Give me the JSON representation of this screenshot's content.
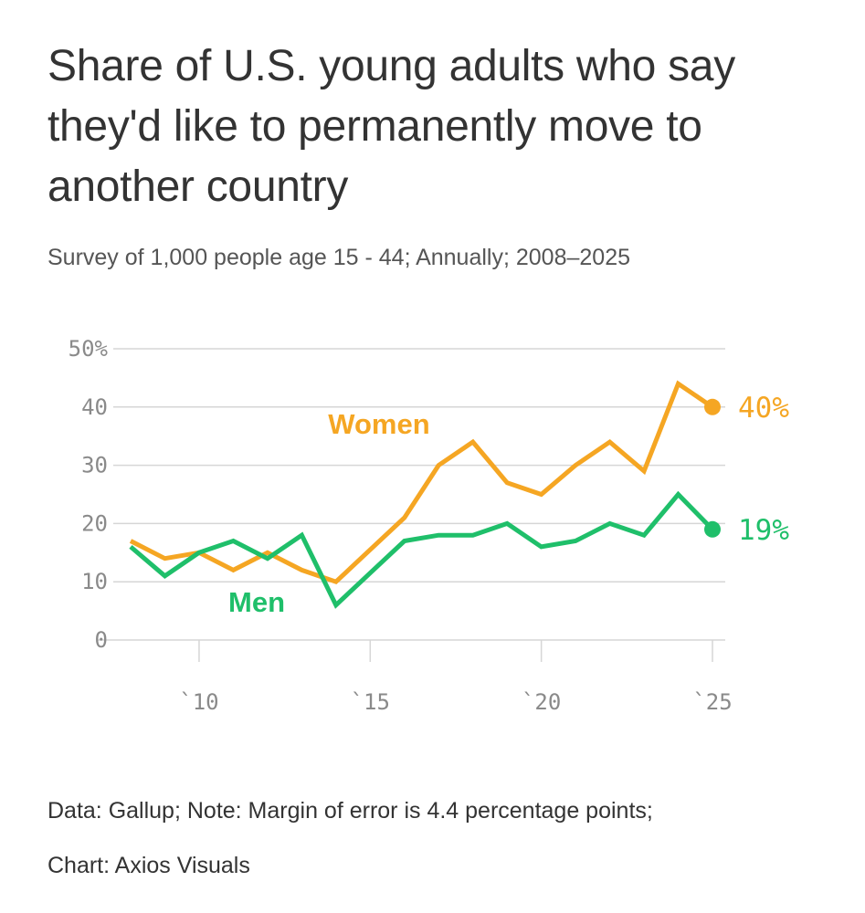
{
  "title": "Share of U.S. young adults who say they'd like to permanently move to another country",
  "subtitle": "Survey of 1,000 people age 15 - 44; Annually; 2008–2025",
  "footer": {
    "source": "Data: Gallup; Note: Margin of error is 4.4 percentage points;",
    "credit": "Chart: Axios Visuals"
  },
  "chart_data": {
    "type": "line",
    "title": "Share of U.S. young adults who say they'd like to permanently move to another country",
    "xlabel": "",
    "ylabel": "",
    "x": [
      2008,
      2009,
      2010,
      2011,
      2012,
      2013,
      2014,
      2015,
      2016,
      2017,
      2018,
      2019,
      2020,
      2021,
      2022,
      2023,
      2024,
      2025
    ],
    "xlim": [
      2008,
      2025
    ],
    "ylim": [
      0,
      50
    ],
    "yticks": [
      0,
      10,
      20,
      30,
      40,
      50
    ],
    "ytick_labels": [
      "0",
      "10",
      "20",
      "30",
      "40",
      "50%"
    ],
    "xticks": [
      2010,
      2015,
      2020,
      2025
    ],
    "xtick_labels": [
      "`10",
      "`15",
      "`20",
      "`25"
    ],
    "grid": true,
    "series": [
      {
        "name": "Women",
        "color": "#f5a623",
        "values": [
          17,
          14,
          15,
          12,
          15,
          12,
          10,
          15.5,
          21,
          30,
          34,
          27,
          25,
          30,
          34,
          29,
          44,
          40
        ],
        "end_label": "40%"
      },
      {
        "name": "Men",
        "color": "#1fbf6a",
        "values": [
          16,
          11,
          15,
          17,
          14,
          18,
          6,
          11.5,
          17,
          18,
          18,
          20,
          16,
          17,
          20,
          18,
          25,
          19
        ],
        "end_label": "19%"
      }
    ]
  }
}
